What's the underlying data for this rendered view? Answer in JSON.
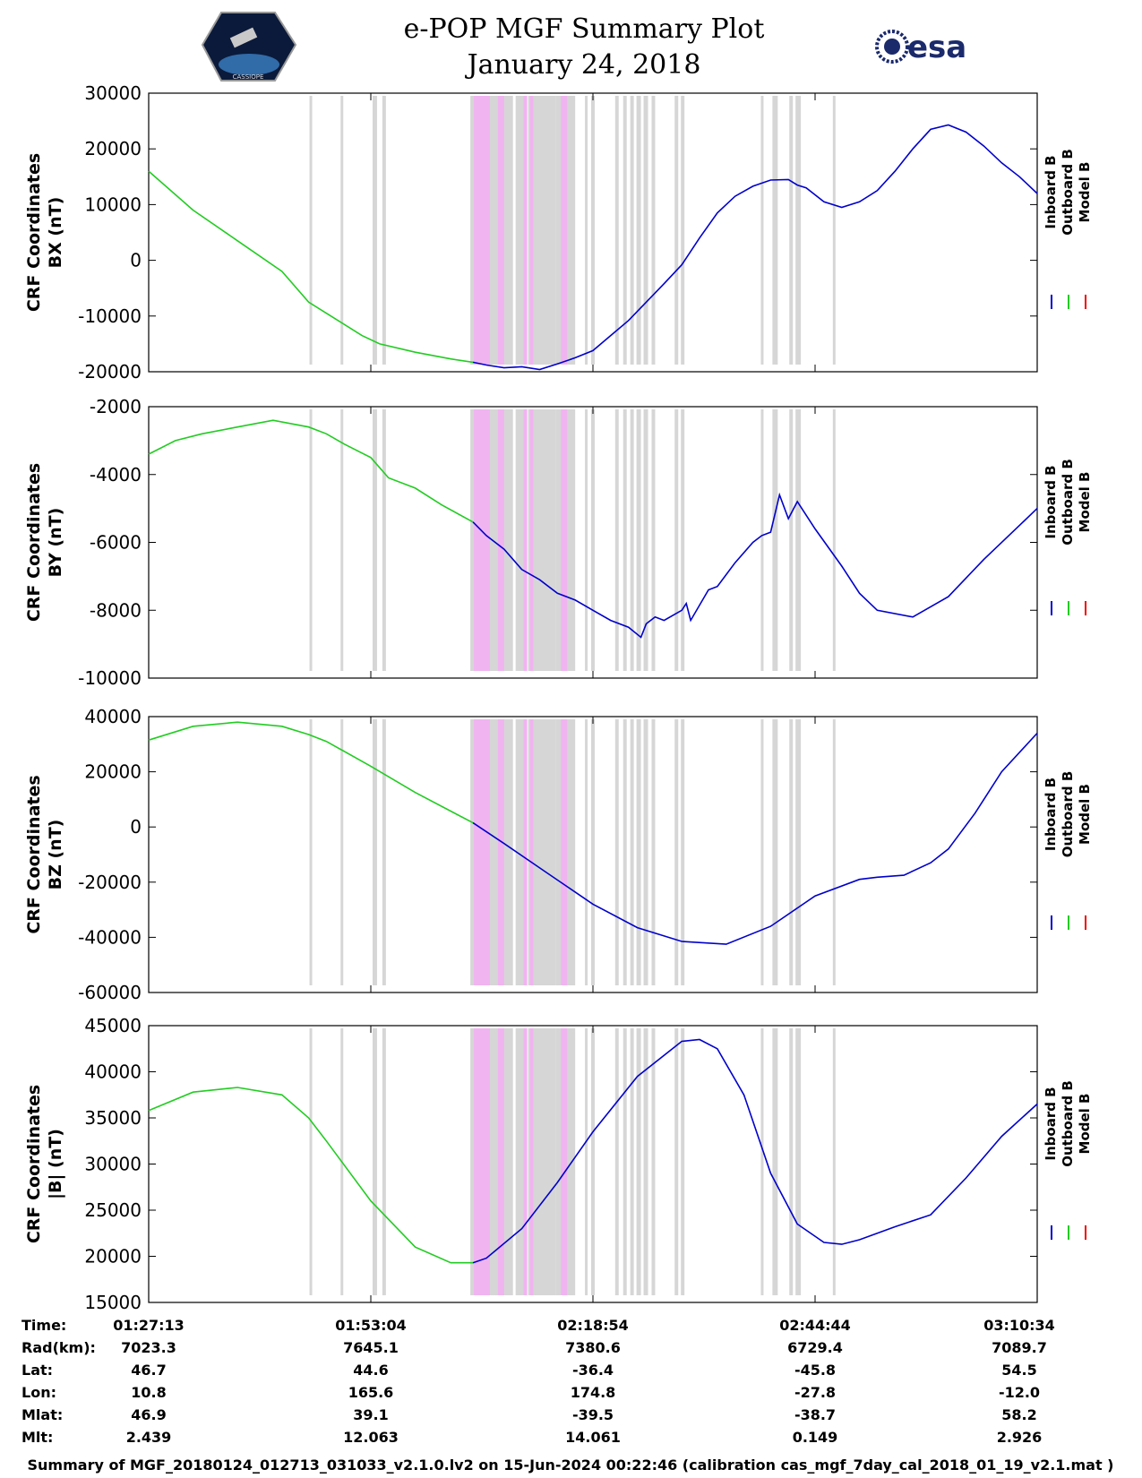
{
  "header": {
    "title": "e-POP MGF Summary Plot",
    "date": "January 24, 2018",
    "left_logo": "CASSIOPE",
    "right_logo": "esa"
  },
  "legend": {
    "labels": [
      "Inboard B",
      "Outboard B",
      "Model B"
    ],
    "colors": [
      "#0000cc",
      "#22cc22",
      "#ee0000"
    ]
  },
  "colors": {
    "inboard": "#0000cc",
    "outboard": "#22cc22",
    "gray_band": "#d6d6d6",
    "pink_band": "#f0b4f0"
  },
  "chart_data": {
    "type": "line",
    "x_range": [
      0,
      100
    ],
    "x_ticks": [
      0,
      25,
      50,
      75,
      100
    ],
    "x_tick_labels": [
      "01:27:13",
      "01:53:04",
      "02:18:54",
      "02:44:44",
      "03:10:34"
    ],
    "outboard_to_inboard_switch_x": 36.5,
    "gray_bands": [
      [
        18.1,
        18.4
      ],
      [
        21.6,
        21.9
      ],
      [
        25.2,
        25.7
      ],
      [
        26.3,
        26.7
      ],
      [
        36.2,
        41.0
      ],
      [
        41.3,
        42.3
      ],
      [
        42.7,
        45.8
      ],
      [
        45.8,
        48.0
      ],
      [
        49.1,
        49.4
      ],
      [
        49.8,
        50.2
      ],
      [
        52.5,
        52.9
      ],
      [
        53.4,
        53.8
      ],
      [
        54.2,
        54.6
      ],
      [
        54.9,
        55.4
      ],
      [
        55.7,
        56.2
      ],
      [
        56.6,
        57.0
      ],
      [
        59.2,
        59.6
      ],
      [
        59.9,
        60.3
      ],
      [
        68.9,
        69.2
      ],
      [
        70.2,
        70.8
      ],
      [
        72.1,
        72.5
      ],
      [
        72.8,
        73.4
      ],
      [
        77.0,
        77.3
      ]
    ],
    "pink_bands": [
      [
        36.6,
        38.4
      ],
      [
        39.3,
        40.0
      ],
      [
        42.2,
        42.6
      ],
      [
        42.9,
        43.3
      ],
      [
        46.4,
        47.1
      ]
    ],
    "panels": [
      {
        "name": "bx",
        "ylabel": "CRF Coordinates",
        "ylabel2": "BX (nT)",
        "ylim": [
          -20000,
          30000
        ],
        "yticks": [
          -20000,
          -10000,
          0,
          10000,
          20000,
          30000
        ],
        "x": [
          0,
          5,
          10,
          15,
          18,
          20,
          24,
          26,
          30,
          34,
          36.5,
          38,
          40,
          42,
          44,
          46,
          48,
          50,
          52,
          54,
          56,
          58,
          60,
          62,
          64,
          66,
          68,
          70,
          72,
          73,
          74,
          76,
          78,
          80,
          82,
          84,
          86,
          88,
          90,
          92,
          94,
          96,
          98,
          100
        ],
        "y": [
          16000,
          9000,
          3500,
          -2000,
          -7500,
          -9500,
          -13500,
          -15000,
          -16500,
          -17700,
          -18300,
          -18800,
          -19300,
          -19100,
          -19600,
          -18600,
          -17500,
          -16200,
          -13500,
          -10800,
          -7500,
          -4200,
          -800,
          4000,
          8500,
          11500,
          13300,
          14400,
          14500,
          13500,
          13000,
          10500,
          9500,
          10500,
          12500,
          16000,
          20000,
          23500,
          24300,
          23000,
          20500,
          17500,
          15000,
          12000
        ]
      },
      {
        "name": "by",
        "ylabel": "CRF Coordinates",
        "ylabel2": "BY (nT)",
        "ylim": [
          -10000,
          -2000
        ],
        "yticks": [
          -10000,
          -8000,
          -6000,
          -4000,
          -2000
        ],
        "x": [
          0,
          3,
          6,
          10,
          14,
          18,
          20,
          22,
          25,
          27,
          30,
          33,
          36.5,
          38,
          40,
          42,
          44,
          46,
          48,
          50,
          52,
          54,
          55.4,
          56,
          57,
          58,
          60,
          60.5,
          61,
          63,
          64,
          66,
          68,
          69,
          70,
          71,
          72,
          73,
          75,
          78,
          80,
          82,
          86,
          90,
          94,
          98,
          100
        ],
        "y": [
          -3400,
          -3000,
          -2800,
          -2600,
          -2400,
          -2600,
          -2800,
          -3100,
          -3500,
          -4100,
          -4400,
          -4900,
          -5400,
          -5800,
          -6200,
          -6800,
          -7100,
          -7500,
          -7700,
          -8000,
          -8300,
          -8500,
          -8800,
          -8400,
          -8200,
          -8300,
          -8000,
          -7800,
          -8300,
          -7400,
          -7300,
          -6600,
          -6000,
          -5800,
          -5700,
          -4600,
          -5300,
          -4800,
          -5600,
          -6700,
          -7500,
          -8000,
          -8200,
          -7600,
          -6500,
          -5500,
          -5000
        ]
      },
      {
        "name": "bz",
        "ylabel": "CRF Coordinates",
        "ylabel2": "BZ (nT)",
        "ylim": [
          -60000,
          40000
        ],
        "yticks": [
          -60000,
          -40000,
          -20000,
          0,
          20000,
          40000
        ],
        "x": [
          0,
          5,
          10,
          15,
          18,
          20,
          25,
          30,
          36.5,
          40,
          45,
          50,
          55,
          60,
          65,
          70,
          75,
          80,
          82,
          85,
          88,
          90,
          93,
          96,
          100
        ],
        "y": [
          31500,
          36500,
          38000,
          36500,
          33500,
          31000,
          22000,
          12500,
          1500,
          -6000,
          -17000,
          -28000,
          -36500,
          -41500,
          -42500,
          -36000,
          -25000,
          -19000,
          -18200,
          -17500,
          -13000,
          -8000,
          5000,
          20000,
          34000
        ]
      },
      {
        "name": "bmag",
        "ylabel": "CRF Coordinates",
        "ylabel2": "|B| (nT)",
        "ylim": [
          15000,
          45000
        ],
        "yticks": [
          15000,
          20000,
          25000,
          30000,
          35000,
          40000,
          45000
        ],
        "x": [
          0,
          5,
          10,
          15,
          18,
          20,
          25,
          30,
          34,
          36.5,
          38,
          42,
          46,
          50,
          55,
          60,
          62,
          64,
          67,
          70,
          73,
          76,
          78,
          80,
          84,
          88,
          92,
          96,
          100
        ],
        "y": [
          35800,
          37800,
          38300,
          37500,
          35000,
          32500,
          26000,
          21000,
          19300,
          19300,
          19800,
          23000,
          28000,
          33500,
          39500,
          43300,
          43500,
          42500,
          37500,
          29000,
          23500,
          21500,
          21300,
          21800,
          23200,
          24500,
          28500,
          33000,
          36500
        ]
      }
    ],
    "table": {
      "row_labels": [
        "Time:",
        "Rad(km):",
        "Lat:",
        "Lon:",
        "Mlat:",
        "Mlt:"
      ],
      "columns": [
        [
          "01:27:13",
          "7023.3",
          "46.7",
          "10.8",
          "46.9",
          "2.439"
        ],
        [
          "01:53:04",
          "7645.1",
          "44.6",
          "165.6",
          "39.1",
          "12.063"
        ],
        [
          "02:18:54",
          "7380.6",
          "-36.4",
          "174.8",
          "-39.5",
          "14.061"
        ],
        [
          "02:44:44",
          "6729.4",
          "-45.8",
          "-27.8",
          "-38.7",
          "0.149"
        ],
        [
          "03:10:34",
          "7089.7",
          "54.5",
          "-12.0",
          "58.2",
          "2.926"
        ]
      ]
    }
  },
  "footer": "Summary of MGF_20180124_012713_031033_v2.1.0.lv2 on 15-Jun-2024 00:22:46 (calibration cas_mgf_7day_cal_2018_01_19_v2.1.mat )"
}
